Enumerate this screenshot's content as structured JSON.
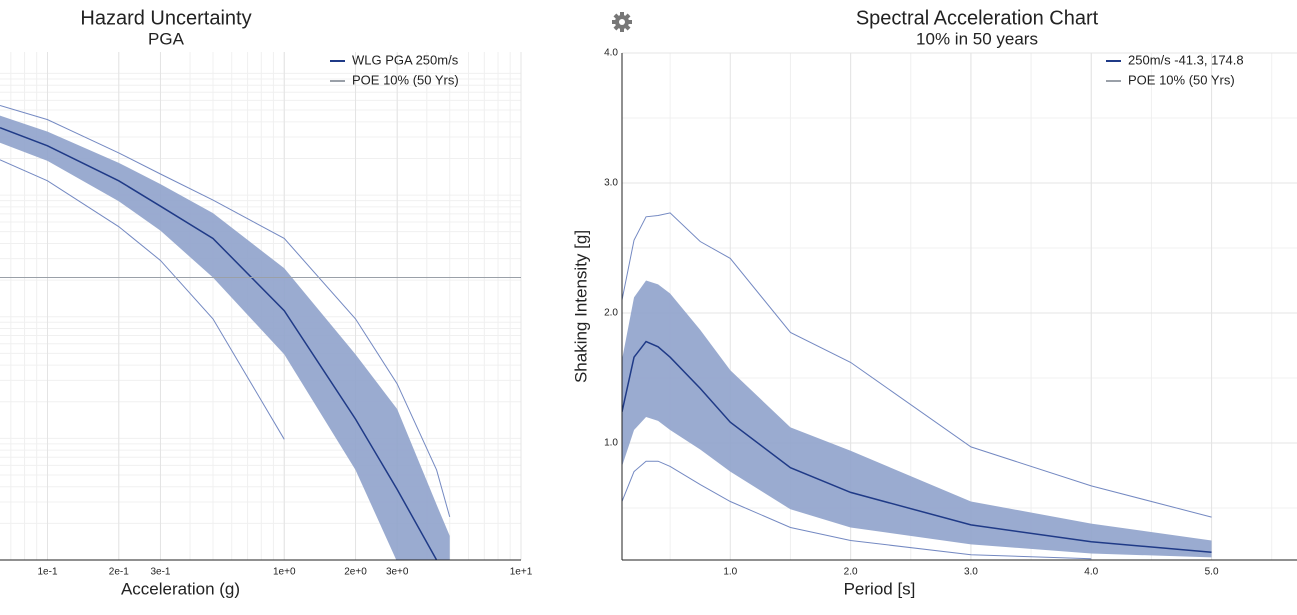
{
  "chart_data": [
    {
      "type": "line",
      "title": "Hazard Uncertainty",
      "subtitle": "PGA",
      "x_label": "Acceleration (g)",
      "xscale": "log",
      "yscale": "log",
      "grid": true,
      "minor_grid": true,
      "legend": "top-right",
      "xlim": [
        0.063,
        10
      ],
      "ylim": [
        1e-05,
        0.15
      ],
      "xticks": [
        {
          "value": 0.1,
          "label": "1e-1"
        },
        {
          "value": 0.2,
          "label": "2e-1"
        },
        {
          "value": 0.3,
          "label": "3e-1"
        },
        {
          "value": 1,
          "label": "1e+0"
        },
        {
          "value": 2,
          "label": "2e+0"
        },
        {
          "value": 3,
          "label": "3e+0"
        },
        {
          "value": 10,
          "label": "1e+1"
        }
      ],
      "x": [
        0.063,
        0.1,
        0.2,
        0.3,
        0.5,
        1,
        2,
        3,
        4.4,
        5
      ],
      "band": {
        "color": "#8fa2cb",
        "upper": [
          0.045,
          0.0332,
          0.0184,
          0.0123,
          0.0071,
          0.0025,
          0.00049,
          0.000174,
          2.85e-05,
          1.58e-05
        ],
        "lower": [
          0.0269,
          0.0191,
          0.0089,
          0.0051,
          0.0021,
          0.00049,
          5.5e-05,
          null,
          null,
          null
        ]
      },
      "series": [
        {
          "name": "WLG PGA 250m/s",
          "color": "#1f3a87",
          "values": [
            0.0358,
            0.0254,
            0.0131,
            0.0081,
            0.0044,
            0.00112,
            0.000144,
            3.8e-05,
            1e-05,
            null
          ]
        },
        {
          "color": "#7489c2",
          "values": [
            0.0545,
            0.0417,
            0.0222,
            0.0149,
            0.0091,
            0.0044,
            0.00096,
            0.00028,
            5.5e-05,
            2.26e-05
          ]
        },
        {
          "color": "#7489c2",
          "values": [
            0.0195,
            0.0131,
            0.0055,
            0.0029,
            0.00096,
            9.82e-05,
            null,
            null,
            null,
            null
          ]
        },
        {
          "name": "POE 10% (50 Yrs)",
          "color": "#9aa0a8",
          "hline": 0.0021
        }
      ]
    },
    {
      "type": "line",
      "title": "Spectral Acceleration Chart",
      "subtitle": "10% in 50 years",
      "x_label": "Period [s]",
      "y_label": "Shaking Intensity [g]",
      "xscale": "linear",
      "yscale": "linear",
      "grid": true,
      "minor_grid": true,
      "legend": "top-right",
      "xlim": [
        0.1,
        5.71
      ],
      "ylim": [
        0.1,
        4.0
      ],
      "xticks": [
        {
          "value": 1,
          "label": "1.0"
        },
        {
          "value": 2,
          "label": "2.0"
        },
        {
          "value": 3,
          "label": "3.0"
        },
        {
          "value": 4,
          "label": "4.0"
        },
        {
          "value": 5,
          "label": "5.0"
        }
      ],
      "yticks": [
        {
          "value": 1,
          "label": "1.0"
        },
        {
          "value": 2,
          "label": "2.0"
        },
        {
          "value": 3,
          "label": "3.0"
        },
        {
          "value": 4,
          "label": "4.0"
        }
      ],
      "x": [
        0.1,
        0.2,
        0.3,
        0.4,
        0.5,
        0.75,
        1,
        1.5,
        2,
        3,
        4,
        5
      ],
      "band": {
        "color": "#8fa2cb",
        "upper": [
          1.64,
          2.12,
          2.25,
          2.22,
          2.15,
          1.87,
          1.56,
          1.12,
          0.94,
          0.55,
          0.38,
          0.25
        ],
        "lower": [
          0.82,
          1.1,
          1.2,
          1.17,
          1.1,
          0.95,
          0.78,
          0.49,
          0.35,
          0.22,
          0.15,
          0.12
        ]
      },
      "series": [
        {
          "name": "250m/s -41.3, 174.8",
          "color": "#1f3a87",
          "values": [
            1.24,
            1.66,
            1.78,
            1.74,
            1.66,
            1.42,
            1.16,
            0.81,
            0.62,
            0.37,
            0.24,
            0.16
          ]
        },
        {
          "color": "#7489c2",
          "values": [
            2.1,
            2.56,
            2.74,
            2.75,
            2.77,
            2.55,
            2.42,
            1.85,
            1.62,
            0.97,
            0.67,
            0.43
          ]
        },
        {
          "color": "#7489c2",
          "values": [
            0.55,
            0.78,
            0.86,
            0.86,
            0.82,
            0.68,
            0.55,
            0.35,
            0.25,
            0.14,
            0.11,
            null
          ]
        },
        {
          "name": "POE 10% (50 Yrs)",
          "color": "#9aa0a8"
        }
      ]
    }
  ]
}
